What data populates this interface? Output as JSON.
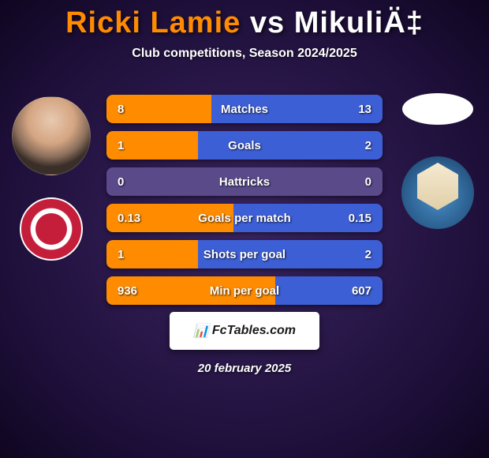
{
  "title": {
    "player1": "Ricki Lamie",
    "vs": "vs",
    "player2": "MikuliÄ‡"
  },
  "subtitle": "Club competitions, Season 2024/2025",
  "colors": {
    "player1_bar": "#ff8c00",
    "player2_bar": "#3d5fd6",
    "neutral_bar": "#5a4a8a"
  },
  "stats": [
    {
      "label": "Matches",
      "v1": "8",
      "v2": "13",
      "p1_pct": 38,
      "p2_pct": 62
    },
    {
      "label": "Goals",
      "v1": "1",
      "v2": "2",
      "p1_pct": 33,
      "p2_pct": 67
    },
    {
      "label": "Hattricks",
      "v1": "0",
      "v2": "0",
      "p1_pct": 0,
      "p2_pct": 0
    },
    {
      "label": "Goals per match",
      "v1": "0.13",
      "v2": "0.15",
      "p1_pct": 46,
      "p2_pct": 54
    },
    {
      "label": "Shots per goal",
      "v1": "1",
      "v2": "2",
      "p1_pct": 33,
      "p2_pct": 67
    },
    {
      "label": "Min per goal",
      "v1": "936",
      "v2": "607",
      "p1_pct": 61,
      "p2_pct": 39
    }
  ],
  "footer_brand": "FcTables.com",
  "date": "20 february 2025"
}
